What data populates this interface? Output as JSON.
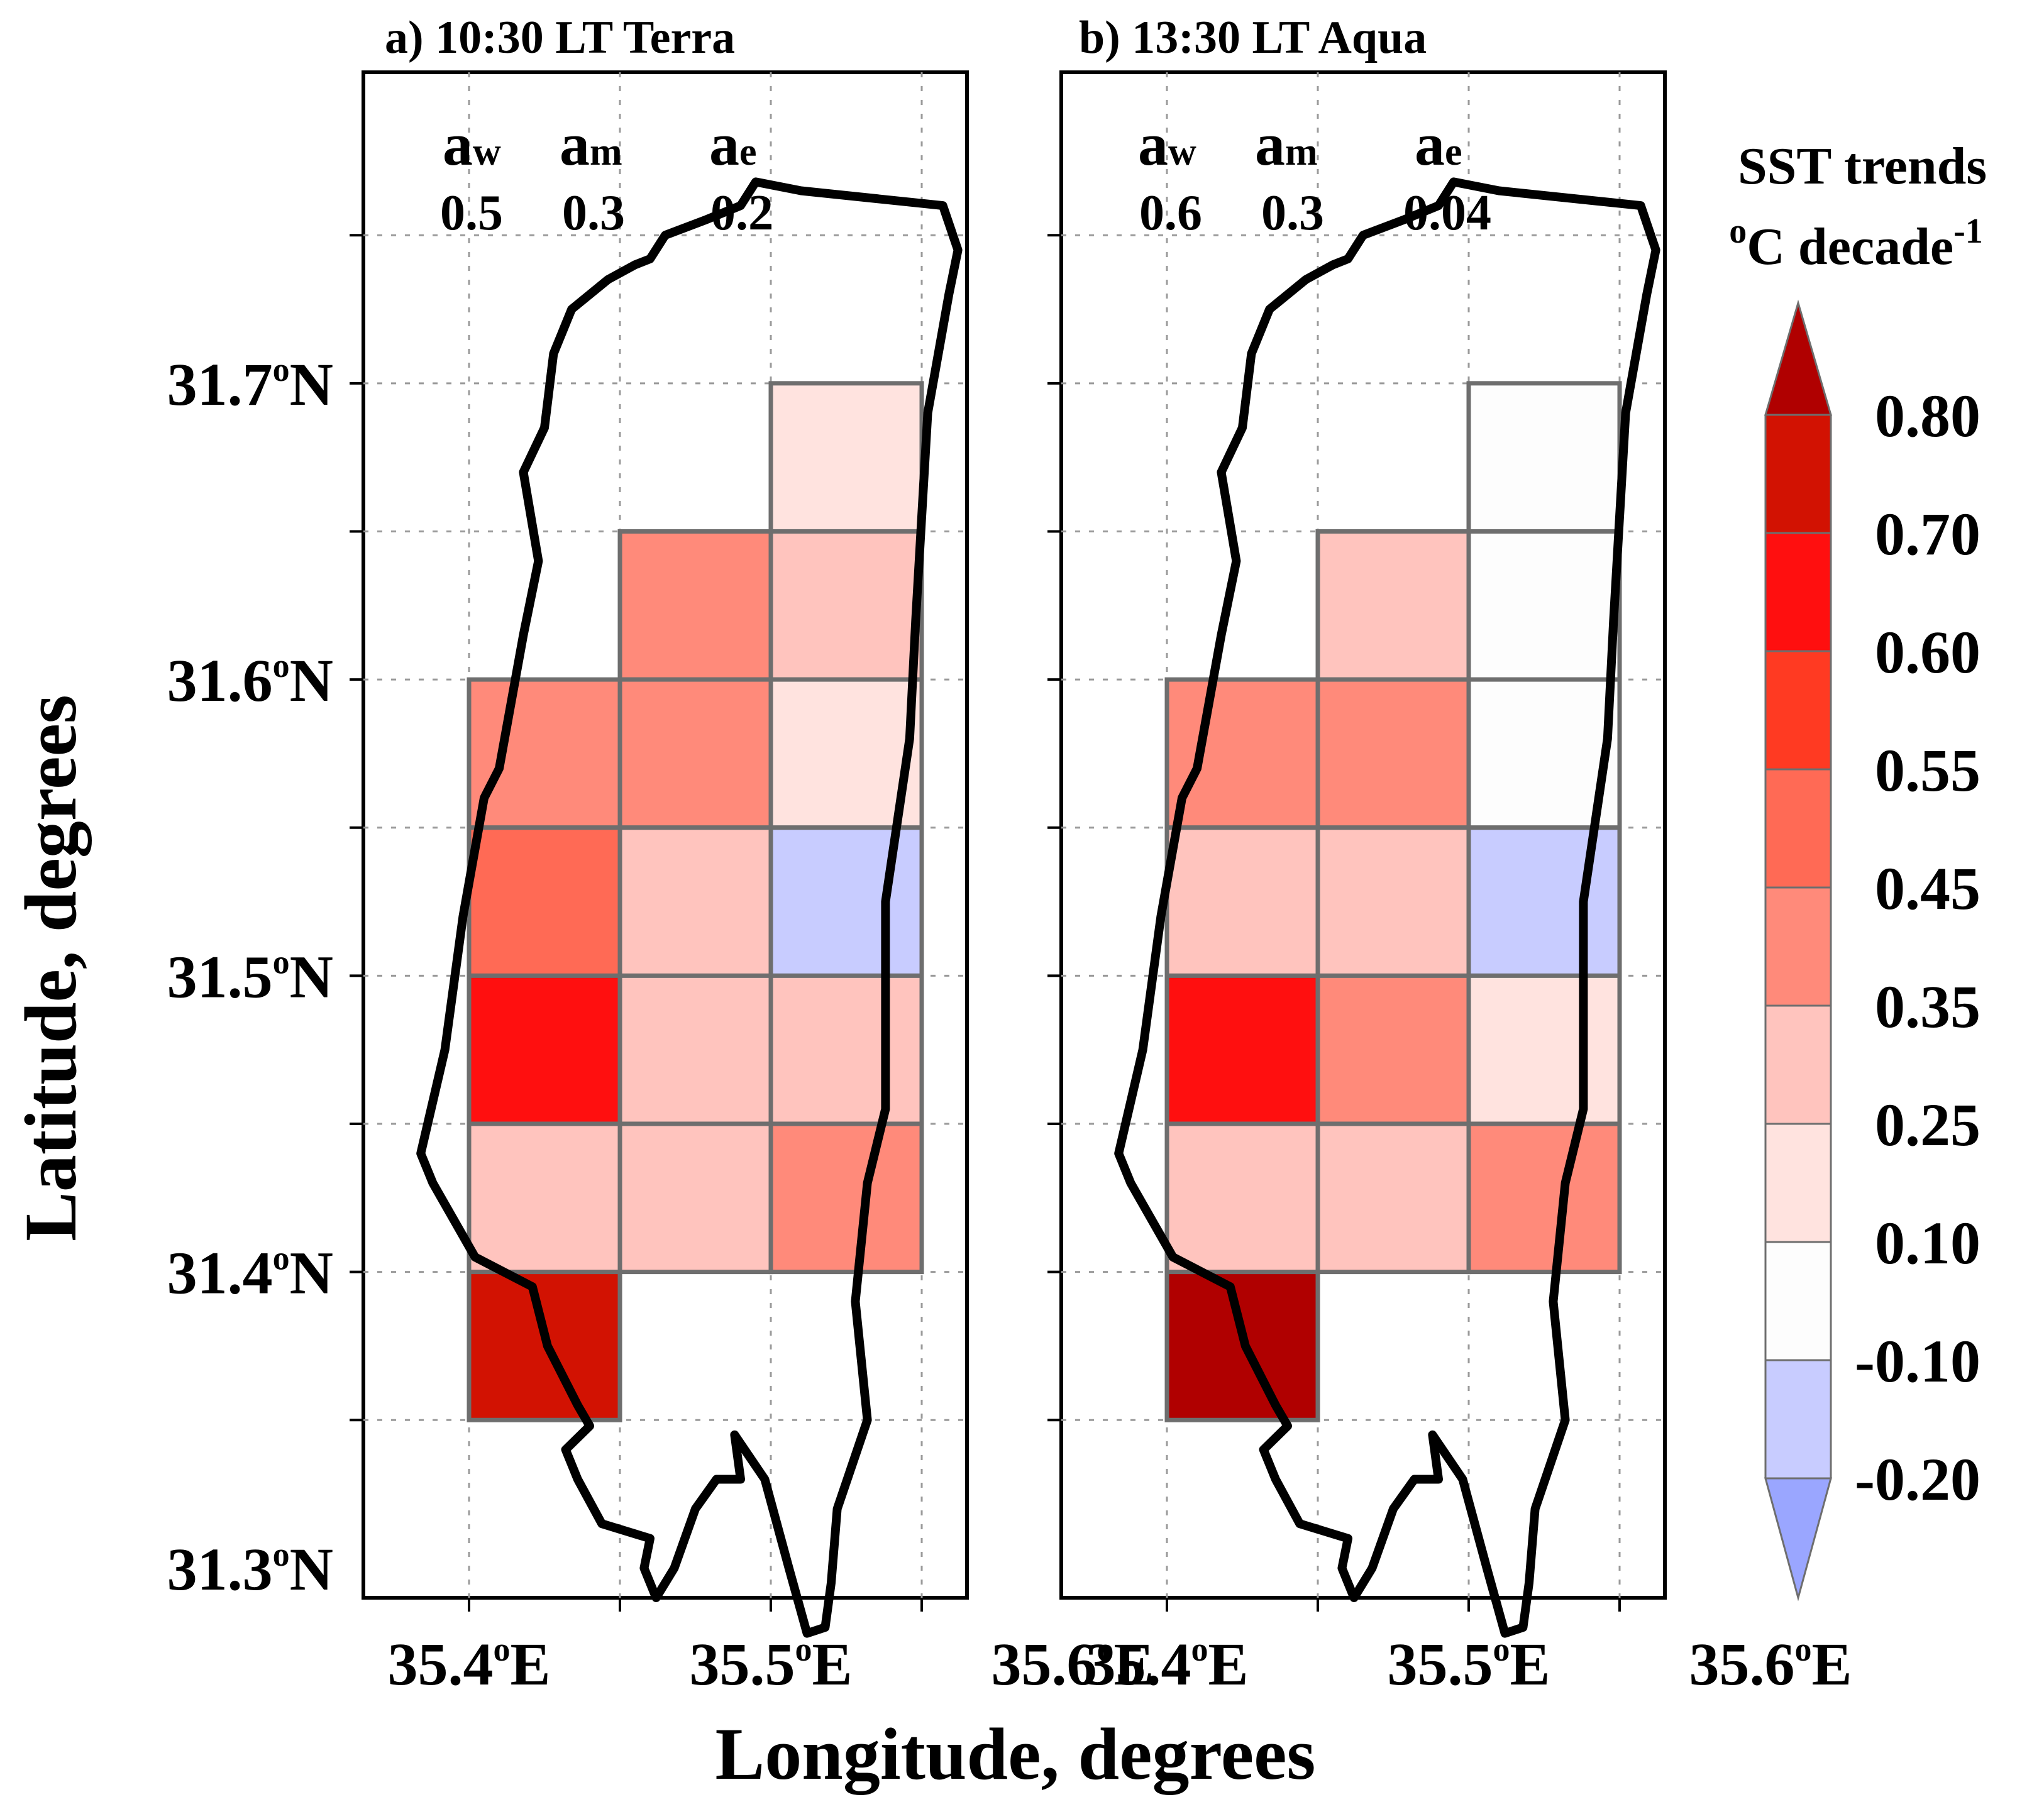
{
  "chart_data": {
    "type": "heatmap",
    "xlabel": "Longitude,  degrees",
    "ylabel": "Latitude,  degrees",
    "x_ticks": [
      "35.4",
      "35.5",
      "35.6"
    ],
    "x_tick_suffix": "E",
    "y_ticks": [
      "31.3",
      "31.4",
      "31.5",
      "31.6",
      "31.7"
    ],
    "y_tick_suffix": "N",
    "xlim": [
      35.365,
      35.565
    ],
    "ylim": [
      31.29,
      31.805
    ],
    "grid": true,
    "colorbar": {
      "title_line1": "SST trends",
      "title_line2_unit": "C  decade",
      "title_superscript": "-1",
      "degree_sign": "o",
      "bounds": [
        "0.80",
        "0.70",
        "0.60",
        "0.55",
        "0.45",
        "0.35",
        "0.25",
        "0.10",
        "-0.10",
        "-0.20"
      ],
      "colors": [
        "#d21202",
        "#ff0f0f",
        "#ff3a22",
        "#ff6a55",
        "#ff8a7a",
        "#ffc4be",
        "#ffe3df",
        "#fdfdfd",
        "#c8ccff"
      ],
      "over_color": "#b00000",
      "under_color": "#9aa6ff"
    },
    "panels": [
      {
        "label": "a) 10:30 LT  Terra",
        "segments": [
          {
            "name": "a",
            "sub": "w",
            "value": "0.5"
          },
          {
            "name": "a",
            "sub": "m",
            "value": "0.3"
          },
          {
            "name": "a",
            "sub": "e",
            "value": "0.2"
          }
        ],
        "cells": [
          {
            "lon": [
              35.5,
              35.55
            ],
            "lat": [
              31.65,
              31.7
            ],
            "color": "#ffe3df"
          },
          {
            "lon": [
              35.45,
              35.5
            ],
            "lat": [
              31.6,
              31.65
            ],
            "color": "#ff8a7a"
          },
          {
            "lon": [
              35.5,
              35.55
            ],
            "lat": [
              31.6,
              31.65
            ],
            "color": "#ffc4be"
          },
          {
            "lon": [
              35.4,
              35.45
            ],
            "lat": [
              31.55,
              31.6
            ],
            "color": "#ff8a7a"
          },
          {
            "lon": [
              35.45,
              35.5
            ],
            "lat": [
              31.55,
              31.6
            ],
            "color": "#ff8a7a"
          },
          {
            "lon": [
              35.5,
              35.55
            ],
            "lat": [
              31.55,
              31.6
            ],
            "color": "#ffe3df"
          },
          {
            "lon": [
              35.4,
              35.45
            ],
            "lat": [
              31.5,
              31.55
            ],
            "color": "#ff6a55"
          },
          {
            "lon": [
              35.45,
              35.5
            ],
            "lat": [
              31.5,
              31.55
            ],
            "color": "#ffc4be"
          },
          {
            "lon": [
              35.5,
              35.55
            ],
            "lat": [
              31.5,
              31.55
            ],
            "color": "#c8ccff"
          },
          {
            "lon": [
              35.4,
              35.45
            ],
            "lat": [
              31.45,
              31.5
            ],
            "color": "#ff0f0f"
          },
          {
            "lon": [
              35.45,
              35.5
            ],
            "lat": [
              31.45,
              31.5
            ],
            "color": "#ffc4be"
          },
          {
            "lon": [
              35.5,
              35.55
            ],
            "lat": [
              31.45,
              31.5
            ],
            "color": "#ffc4be"
          },
          {
            "lon": [
              35.4,
              35.45
            ],
            "lat": [
              31.4,
              31.45
            ],
            "color": "#ffc4be"
          },
          {
            "lon": [
              35.45,
              35.5
            ],
            "lat": [
              31.4,
              31.45
            ],
            "color": "#ffc4be"
          },
          {
            "lon": [
              35.5,
              35.55
            ],
            "lat": [
              31.4,
              31.45
            ],
            "color": "#ff8a7a"
          },
          {
            "lon": [
              35.4,
              35.45
            ],
            "lat": [
              31.35,
              31.4
            ],
            "color": "#d21202"
          }
        ]
      },
      {
        "label": "b) 13:30 LT  Aqua",
        "segments": [
          {
            "name": "a",
            "sub": "w",
            "value": "0.6"
          },
          {
            "name": "a",
            "sub": "m",
            "value": "0.3"
          },
          {
            "name": "a",
            "sub": "e",
            "value": "0.04"
          }
        ],
        "cells": [
          {
            "lon": [
              35.5,
              35.55
            ],
            "lat": [
              31.65,
              31.7
            ],
            "color": "#fdfdfd"
          },
          {
            "lon": [
              35.45,
              35.5
            ],
            "lat": [
              31.6,
              31.65
            ],
            "color": "#ffc4be"
          },
          {
            "lon": [
              35.5,
              35.55
            ],
            "lat": [
              31.6,
              31.65
            ],
            "color": "#fdfdfd"
          },
          {
            "lon": [
              35.4,
              35.45
            ],
            "lat": [
              31.55,
              31.6
            ],
            "color": "#ff8a7a"
          },
          {
            "lon": [
              35.45,
              35.5
            ],
            "lat": [
              31.55,
              31.6
            ],
            "color": "#ff8a7a"
          },
          {
            "lon": [
              35.5,
              35.55
            ],
            "lat": [
              31.55,
              31.6
            ],
            "color": "#fdfdfd"
          },
          {
            "lon": [
              35.4,
              35.45
            ],
            "lat": [
              31.5,
              31.55
            ],
            "color": "#ffc4be"
          },
          {
            "lon": [
              35.45,
              35.5
            ],
            "lat": [
              31.5,
              31.55
            ],
            "color": "#ffc4be"
          },
          {
            "lon": [
              35.5,
              35.55
            ],
            "lat": [
              31.5,
              31.55
            ],
            "color": "#c8ccff"
          },
          {
            "lon": [
              35.4,
              35.45
            ],
            "lat": [
              31.45,
              31.5
            ],
            "color": "#ff0f0f"
          },
          {
            "lon": [
              35.45,
              35.5
            ],
            "lat": [
              31.45,
              31.5
            ],
            "color": "#ff8a7a"
          },
          {
            "lon": [
              35.5,
              35.55
            ],
            "lat": [
              31.45,
              31.5
            ],
            "color": "#ffe3df"
          },
          {
            "lon": [
              35.4,
              35.45
            ],
            "lat": [
              31.4,
              31.45
            ],
            "color": "#ffc4be"
          },
          {
            "lon": [
              35.45,
              35.5
            ],
            "lat": [
              31.4,
              31.45
            ],
            "color": "#ffc4be"
          },
          {
            "lon": [
              35.5,
              35.55
            ],
            "lat": [
              31.4,
              31.45
            ],
            "color": "#ff8a7a"
          },
          {
            "lon": [
              35.4,
              35.45
            ],
            "lat": [
              31.35,
              31.4
            ],
            "color": "#b00000"
          }
        ]
      }
    ],
    "lake_outline": {
      "lon": [
        35.51,
        35.557,
        35.562,
        35.559,
        35.552,
        35.548,
        35.546,
        35.538,
        35.538,
        35.538,
        35.532,
        35.528,
        35.532,
        35.522,
        35.52,
        35.518,
        35.512,
        35.506,
        35.498,
        35.488,
        35.49,
        35.482,
        35.475,
        35.468,
        35.462,
        35.458,
        35.46,
        35.444,
        35.436,
        35.432,
        35.44,
        35.436,
        35.426,
        35.421,
        35.402,
        35.388,
        35.384,
        35.392,
        35.398,
        35.405,
        35.41,
        35.418,
        35.423,
        35.418,
        35.425,
        35.428,
        35.434,
        35.446,
        35.455,
        35.46,
        35.465,
        35.478,
        35.49,
        35.495
      ],
      "lat": [
        31.765,
        31.76,
        31.745,
        31.73,
        31.69,
        31.62,
        31.58,
        31.525,
        31.48,
        31.455,
        31.43,
        31.39,
        31.35,
        31.32,
        31.295,
        31.28,
        31.278,
        31.3,
        31.33,
        31.345,
        31.33,
        31.33,
        31.32,
        31.3,
        31.29,
        31.3,
        31.31,
        31.315,
        31.33,
        31.34,
        31.348,
        31.355,
        31.375,
        31.395,
        31.405,
        31.43,
        31.44,
        31.475,
        31.52,
        31.56,
        31.57,
        31.615,
        31.64,
        31.67,
        31.685,
        31.71,
        31.725,
        31.735,
        31.74,
        31.742,
        31.75,
        31.755,
        31.76,
        31.768
      ]
    }
  }
}
